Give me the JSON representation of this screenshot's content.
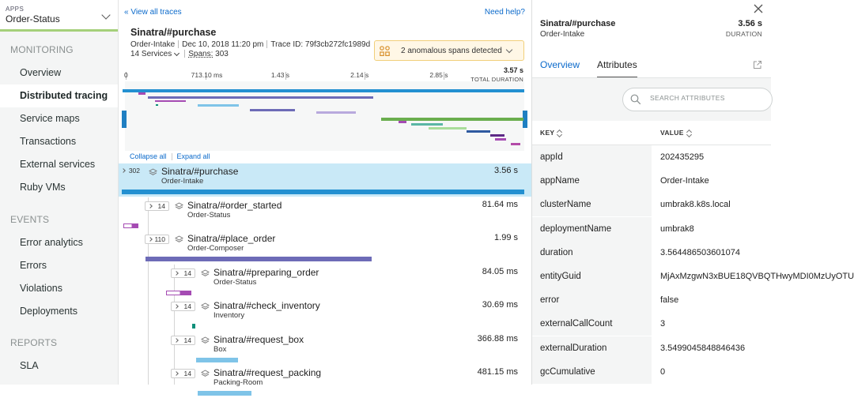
{
  "sidebar": {
    "app_kicker": "APPS",
    "app_name": "Order-Status",
    "sections": [
      {
        "title": "MONITORING",
        "items": [
          "Overview",
          "Distributed tracing",
          "Service maps",
          "Transactions",
          "External services",
          "Ruby VMs"
        ]
      },
      {
        "title": "EVENTS",
        "items": [
          "Error analytics",
          "Errors",
          "Violations",
          "Deployments"
        ]
      },
      {
        "title": "REPORTS",
        "items": [
          "SLA"
        ]
      }
    ],
    "active_item": "Distributed tracing"
  },
  "trace": {
    "view_all": "« View all traces",
    "need_help": "Need help?",
    "title": "Sinatra/#purchase",
    "service": "Order-Intake",
    "date": "Dec 10, 2018 11:20 pm",
    "trace_id": "Trace ID: 79f3cb272fc1989d",
    "services": "14 Services",
    "spans_label": "Spans:",
    "spans_count": "303",
    "anomaly_text": "2 anomalous spans detected",
    "ticks": [
      {
        "label": "0",
        "value": 0
      },
      {
        "label": "713.10 ms",
        "value": 0.7131
      },
      {
        "label": "1.43 s",
        "value": 1.43
      },
      {
        "label": "2.14 s",
        "value": 2.14
      },
      {
        "label": "2.85 s",
        "value": 2.85
      }
    ],
    "total_duration": "3.57 s",
    "total_duration_value": 3.57,
    "total_label": "TOTAL DURATION",
    "collapse_all": "Collapse all",
    "expand_all": "Expand all"
  },
  "spans": [
    {
      "count": "302",
      "name": "Sinatra/#purchase",
      "service": "Order-Intake",
      "duration": "3.56 s",
      "selected": true
    },
    {
      "count": "14",
      "name": "Sinatra/#order_started",
      "service": "Order-Status",
      "duration": "81.64 ms",
      "selected": false
    },
    {
      "count": "110",
      "name": "Sinatra/#place_order",
      "service": "Order-Composer",
      "duration": "1.99 s",
      "selected": false
    },
    {
      "count": "14",
      "name": "Sinatra/#preparing_order",
      "service": "Order-Status",
      "duration": "84.05 ms",
      "selected": false
    },
    {
      "count": "14",
      "name": "Sinatra/#check_inventory",
      "service": "Inventory",
      "duration": "30.69 ms",
      "selected": false
    },
    {
      "count": "14",
      "name": "Sinatra/#request_box",
      "service": "Box",
      "duration": "366.88 ms",
      "selected": false
    },
    {
      "count": "14",
      "name": "Sinatra/#request_packing",
      "service": "Packing-Room",
      "duration": "481.15 ms",
      "selected": false
    }
  ],
  "panel": {
    "title": "Sinatra/#purchase",
    "service": "Order-Intake",
    "duration": "3.56 s",
    "duration_label": "DURATION",
    "tabs": [
      "Overview",
      "Attributes"
    ],
    "active_tab": "Attributes",
    "search_placeholder": "SEARCH ATTRIBUTES",
    "key_header": "KEY",
    "value_header": "VALUE",
    "attributes": [
      {
        "key": "appId",
        "value": "202435295"
      },
      {
        "key": "appName",
        "value": "Order-Intake"
      },
      {
        "key": "clusterName",
        "value": "umbrak8.k8s.local"
      },
      {
        "key": "deploymentName",
        "value": "umbrak8"
      },
      {
        "key": "duration",
        "value": "3.564486503601074"
      },
      {
        "key": "entityGuid",
        "value": "MjAxMzgwN3xBUE18QVBQTHwyMDI0MzUyOTU"
      },
      {
        "key": "error",
        "value": "false"
      },
      {
        "key": "externalCallCount",
        "value": "3"
      },
      {
        "key": "externalDuration",
        "value": "3.5499045848846436"
      },
      {
        "key": "gcCumulative",
        "value": "0"
      }
    ]
  },
  "colors": {
    "accent_green": "#a5d07a",
    "link": "#0b6acb",
    "selected_row": "#c9e9f7",
    "root_bar": "#2390d1",
    "order_status_bar": "#a54bb3",
    "composer_bar": "#6d6bb7",
    "box_bar": "#7fc4e8",
    "inventory_bar": "#0e8f7a"
  }
}
